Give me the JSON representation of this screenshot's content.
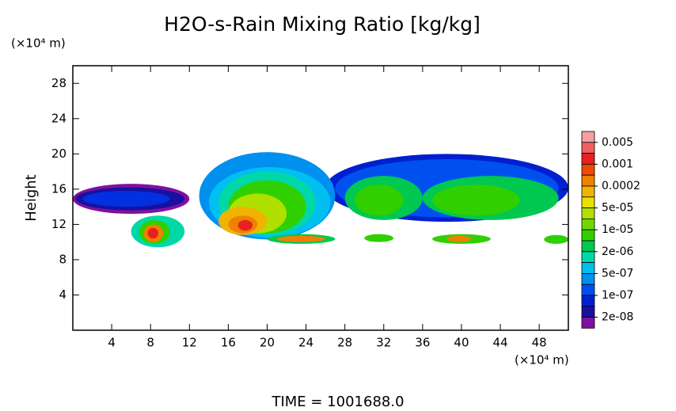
{
  "chart_data": {
    "type": "contour",
    "title": "H2O-s-Rain Mixing Ratio [kg/kg]",
    "y_label": "Height",
    "x_unit": "(×10⁴ m)",
    "y_unit": "(×10⁴ m)",
    "footer": "TIME = 1001688.0",
    "xlim": [
      0,
      51
    ],
    "ylim": [
      0,
      30
    ],
    "xticks": [
      4,
      8,
      12,
      16,
      20,
      24,
      28,
      32,
      36,
      40,
      44,
      48
    ],
    "yticks": [
      4,
      8,
      12,
      16,
      20,
      24,
      28
    ],
    "colorbar": {
      "colors": [
        "#f5a0a0",
        "#f06060",
        "#e82020",
        "#f04a00",
        "#f08000",
        "#f0b400",
        "#e8e000",
        "#b0e000",
        "#70d800",
        "#30d000",
        "#00c850",
        "#00d8a8",
        "#00c0f0",
        "#0090f0",
        "#0050f0",
        "#0020d0",
        "#1810a0",
        "#8010a0"
      ],
      "ticks": [
        0.005,
        0.001,
        0.0002,
        {
          "value": 5e-05,
          "label": "5e-05"
        },
        {
          "value": 1e-05,
          "label": "1e-05"
        },
        {
          "value": 2e-06,
          "label": "2e-06"
        },
        {
          "value": 5e-07,
          "label": "5e-07"
        },
        {
          "value": 1e-07,
          "label": "1e-07"
        },
        {
          "value": 2e-08,
          "label": "2e-08"
        }
      ]
    },
    "regions": [
      {
        "x": [
          0,
          12
        ],
        "y": [
          13.2,
          16.6
        ],
        "color": "#8010a0"
      },
      {
        "x": [
          0.3,
          11.5
        ],
        "y": [
          13.6,
          16.2
        ],
        "color": "#1810a0"
      },
      {
        "x": [
          1,
          10
        ],
        "y": [
          14,
          15.8
        ],
        "color": "#0030e0"
      },
      {
        "x": [
          26,
          51
        ],
        "y": [
          12.3,
          20
        ],
        "color": "#0020d0"
      },
      {
        "x": [
          27,
          50
        ],
        "y": [
          12.8,
          19.4
        ],
        "color": "#0050f0"
      },
      {
        "x": [
          13,
          27
        ],
        "y": [
          10.3,
          20.2
        ],
        "color": "#0090f0"
      },
      {
        "x": [
          14,
          26.5
        ],
        "y": [
          10.5,
          18.5
        ],
        "color": "#00c0f0"
      },
      {
        "x": [
          15,
          25
        ],
        "y": [
          10.8,
          18
        ],
        "color": "#00d8a8"
      },
      {
        "x": [
          16,
          24
        ],
        "y": [
          11,
          17
        ],
        "color": "#30d000"
      },
      {
        "x": [
          16,
          22
        ],
        "y": [
          11,
          15.5
        ],
        "color": "#b0e000"
      },
      {
        "x": [
          15,
          20
        ],
        "y": [
          10.8,
          14
        ],
        "color": "#f0b400"
      },
      {
        "x": [
          16,
          19
        ],
        "y": [
          11,
          13
        ],
        "color": "#f08000"
      },
      {
        "x": [
          17,
          18.5
        ],
        "y": [
          11.3,
          12.5
        ],
        "color": "#e82020"
      },
      {
        "x": [
          6,
          11.5
        ],
        "y": [
          9.4,
          13
        ],
        "color": "#00d8a8"
      },
      {
        "x": [
          6.8,
          10
        ],
        "y": [
          9.8,
          12.5
        ],
        "color": "#30d000"
      },
      {
        "x": [
          7.3,
          9.3
        ],
        "y": [
          10,
          12
        ],
        "color": "#f08000"
      },
      {
        "x": [
          7.7,
          8.8
        ],
        "y": [
          10.4,
          11.6
        ],
        "color": "#e82020"
      },
      {
        "x": [
          28,
          36
        ],
        "y": [
          12.5,
          17.5
        ],
        "color": "#00c850"
      },
      {
        "x": [
          29,
          34
        ],
        "y": [
          13,
          16.5
        ],
        "color": "#30d000"
      },
      {
        "x": [
          36,
          50
        ],
        "y": [
          12.5,
          17.5
        ],
        "color": "#00c850"
      },
      {
        "x": [
          37,
          46
        ],
        "y": [
          13,
          16.5
        ],
        "color": "#30d000"
      },
      {
        "x": [
          20,
          27
        ],
        "y": [
          9.8,
          10.9
        ],
        "color": "#00c850"
      },
      {
        "x": [
          21,
          26
        ],
        "y": [
          10,
          10.7
        ],
        "color": "#f08000"
      },
      {
        "x": [
          30,
          33
        ],
        "y": [
          10,
          10.9
        ],
        "color": "#30d000"
      },
      {
        "x": [
          37,
          43
        ],
        "y": [
          9.8,
          10.9
        ],
        "color": "#30d000"
      },
      {
        "x": [
          38.5,
          41
        ],
        "y": [
          10,
          10.7
        ],
        "color": "#f08000"
      },
      {
        "x": [
          48.5,
          51
        ],
        "y": [
          9.8,
          10.8
        ],
        "color": "#30d000"
      }
    ]
  }
}
